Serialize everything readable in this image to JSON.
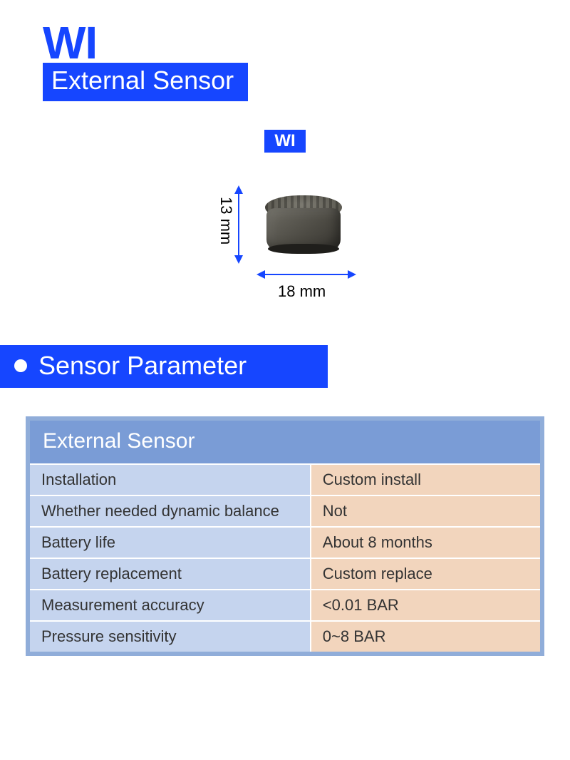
{
  "colors": {
    "brand_blue": "#1646ff",
    "arrow_blue": "#1646ff",
    "table_border": "#90add9",
    "table_header_bg": "#7a9cd6",
    "row_label_bg": "#c5d4ee",
    "row_value_bg": "#f2d5bd",
    "text_dark": "#333333",
    "white": "#ffffff"
  },
  "header": {
    "brand": "WI",
    "subtitle": "External Sensor"
  },
  "diagram": {
    "badge": "WI",
    "height_label": "13 mm",
    "width_label": "18 mm"
  },
  "section": {
    "title": "Sensor Parameter"
  },
  "table": {
    "title": "External Sensor",
    "rows": [
      {
        "label": "Installation",
        "value": "Custom install"
      },
      {
        "label": "Whether needed dynamic balance",
        "value": "Not"
      },
      {
        "label": "Battery life",
        "value": "About 8 months"
      },
      {
        "label": "Battery replacement",
        "value": "Custom replace"
      },
      {
        "label": "Measurement accuracy",
        "value": "<0.01 BAR"
      },
      {
        "label": "Pressure sensitivity",
        "value": "0~8 BAR"
      }
    ]
  }
}
